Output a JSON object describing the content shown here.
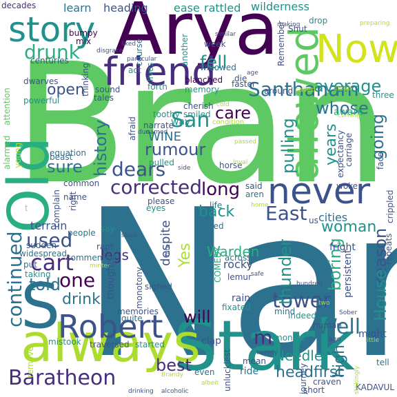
{
  "palette": {
    "purple": "#440154",
    "indigo": "#472d7b",
    "blue": "#3b528b",
    "steel": "#2c728e",
    "teal": "#21918c",
    "green": "#28ae80",
    "lime": "#5ec962",
    "yellow": "#addc30",
    "lemon": "#d2e21b"
  },
  "words": {
    "nan": "Nan",
    "bran": "Bran",
    "arya": "Arya",
    "stark": "Stark",
    "always": "always",
    "old": "Old",
    "now": "Now",
    "friend": "friend",
    "never": "never",
    "story": "story",
    "s": "S",
    "robert": "Robert",
    "baratheon": "Baratheon",
    "allowed": "allowed",
    "santhanam": "Santhanam",
    "average": "average",
    "drunk": "drunk",
    "fell": "fell",
    "whose": "whose",
    "san": "San",
    "care": "care",
    "continued": "continued",
    "cart": "cart",
    "used": "used",
    "one": "one",
    "told": "told",
    "drink": "drink",
    "will": "will",
    "tower": "tower",
    "well": "Well",
    "east": "East",
    "back": "back",
    "woman": "woman",
    "long": "long",
    "corrected": "corrected",
    "dears": "dears",
    "rumour": "rumour",
    "wine": "WINE",
    "sure": "sure",
    "history": "history",
    "open": "open",
    "pulling": "pulling",
    "going": "going",
    "years": "years",
    "thunder": "thunder",
    "boring": "boring",
    "reason": "reason",
    "house": "House",
    "high": "high",
    "best": "best",
    "headfirst": "headfirst",
    "needle": "Needle",
    "m": "m",
    "yes": "Yes",
    "warden": "Warden",
    "legs": "legs",
    "despite": "despite",
    "wilderness": "wilderness",
    "rattled": "rattled",
    "ease": "ease",
    "heading": "heading",
    "learn": "learn",
    "decades": "decades",
    "kadavul": "KADAVUL",
    "might": "might",
    "cities": "cities",
    "rocky": "rocky",
    "rain": "rain",
    "lemur": "lemur",
    "terrain": "terrain",
    "sighed": "sighed",
    "grin": "grin",
    "keep": "keep",
    "fixated": "fixated",
    "unluckiest": "unluckiest",
    "clap": "clap",
    "ride": "ride",
    "mean": "mean",
    "journey": "journey",
    "persistent": "persistent",
    "craven": "craven",
    "short": "short",
    "months": "months",
    "indeed": "indeed",
    "mind": "mind",
    "fright": "fright",
    "human": "human",
    "carriage": "carriage",
    "expectancy": "expectancy",
    "aware": "aware",
    "three": "three",
    "crippled": "crippled",
    "face": "face",
    "tell": "tell",
    "remove": "remove",
    "mistook": "mistook",
    "traversed": "traversed",
    "started": "started",
    "memories": "memories",
    "quite": "quite",
    "thoughts": "thoughts",
    "monotony": "monotony",
    "commented": "commented",
    "widespread": "widespread",
    "sudden": "sudden",
    "put": "put",
    "taking": "taking",
    "rapt": "rapt",
    "say": "say",
    "people": "people",
    "complain": "complain",
    "name": "name",
    "right": "right",
    "common": "common",
    "eyes": "eyes",
    "please": "please",
    "life": "life",
    "said": "said",
    "aren": "aren",
    "bored": "bored",
    "across": "across",
    "comedy": "COMEDY",
    "woke": "woke",
    "sibling": "sibling",
    "horse": "horse",
    "pulled": "pulled",
    "beast": "beast",
    "equation": "equation",
    "powerful": "powerful",
    "dwarves": "dwarves",
    "centuries": "centuries",
    "thinking": "thinking",
    "bumpy": "bumpy",
    "mix": "mix",
    "course": "course",
    "lives": "lives",
    "act": "act",
    "blanched": "blanched",
    "die": "die",
    "widowed": "widowed",
    "week": "week",
    "another": "another",
    "remember": "Remember",
    "shut": "Shut",
    "drop": "drop",
    "faster": "faster",
    "around": "around",
    "called": "called",
    "sound": "sound",
    "tales": "tales",
    "forth": "forth",
    "memory": "memory",
    "cherish": "cherish",
    "smiled": "smiled",
    "toothy": "toothy",
    "narrate": "narrate",
    "way": "way",
    "condition": "condition",
    "attention": "attention",
    "alarmed": "alarmed",
    "young": "young",
    "afraid": "afraid",
    "named": "named",
    "duo": "duo",
    "cold": "cold",
    "passed": "passed",
    "loyal": "loyal",
    "side": "side",
    "fate": "fate",
    "safe": "safe",
    "hundred": "hundred",
    "two": "two",
    "sober": "Sober",
    "ago": "ago",
    "little": "little",
    "twenty": "twenty",
    "albeit": "albeit",
    "even": "even",
    "brandy": "Brandy",
    "drinking": "drinking",
    "alcoholic": "alcoholic",
    "strikingly": "strikingly",
    "repeats": "repeats",
    "similar": "similar",
    "making": "making",
    "preparing": "preparing",
    "liked": "liked",
    "disgrace": "disgrace",
    "particular": "particular",
    "age": "age",
    "close": "close",
    "coming": "coming",
    "home": "home",
    "stuck": "stuck",
    "minter": "minter",
    "us": "us",
    "t": "t"
  }
}
